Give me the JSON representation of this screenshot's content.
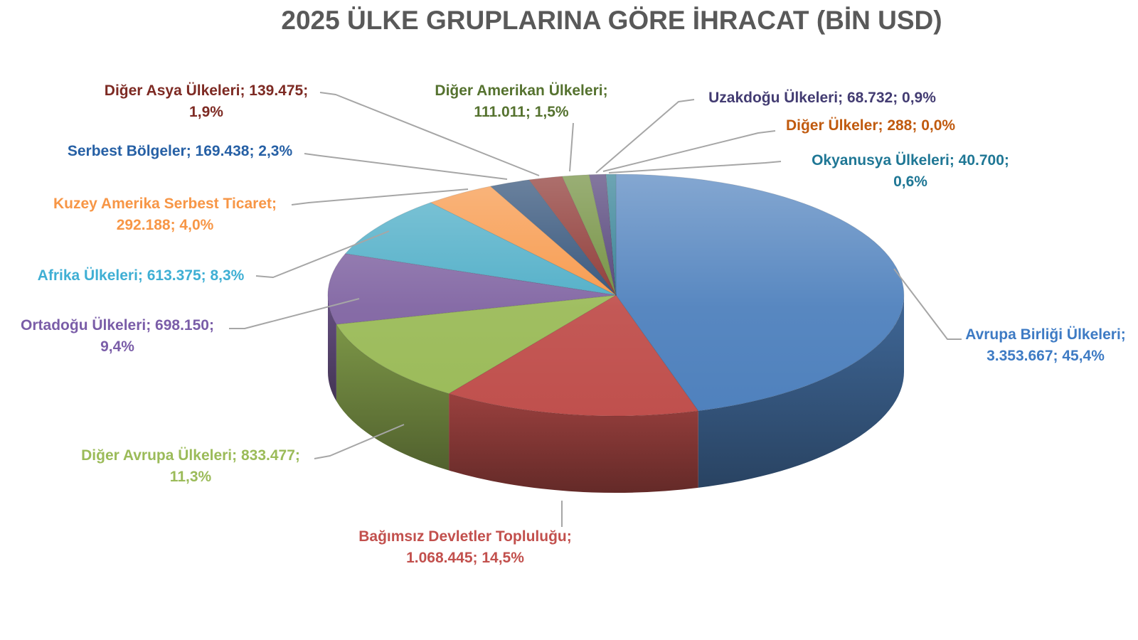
{
  "chart_data": {
    "type": "pie",
    "title": "2025 ÜLKE GRUPLARINA GÖRE İHRACAT (BİN USD)",
    "title_color": "#595959",
    "unit": "BİN USD",
    "total": 7388946,
    "legend_position": "none",
    "label_format": "name; value; percent",
    "leader_line_color": "#A6A6A6",
    "background_color": "#FFFFFF",
    "slices": [
      {
        "name": "Avrupa Birliği Ülkeleri",
        "value": 3353667,
        "value_label": "3.353.667",
        "pct_label": "45,4%",
        "color": "#4F81BD",
        "label_color": "#3E7BC4"
      },
      {
        "name": "Bağımsız Devletler Topluluğu",
        "value": 1068445,
        "value_label": "1.068.445",
        "pct_label": "14,5%",
        "color": "#C0504D",
        "label_color": "#C2504D"
      },
      {
        "name": "Diğer Avrupa Ülkeleri",
        "value": 833477,
        "value_label": "833.477",
        "pct_label": "11,3%",
        "color": "#9BBB59",
        "label_color": "#9BBB59"
      },
      {
        "name": "Ortadoğu Ülkeleri",
        "value": 698150,
        "value_label": "698.150",
        "pct_label": "9,4%",
        "color": "#8064A2",
        "label_color": "#7A5DA8"
      },
      {
        "name": "Afrika Ülkeleri",
        "value": 613375,
        "value_label": "613.375",
        "pct_label": "8,3%",
        "color": "#4BACC6",
        "label_color": "#3FAFD4"
      },
      {
        "name": "Kuzey Amerika Serbest Ticaret",
        "value": 292188,
        "value_label": "292.188",
        "pct_label": "4,0%",
        "color": "#F79646",
        "label_color": "#F79646"
      },
      {
        "name": "Serbest Bölgeler",
        "value": 169438,
        "value_label": "169.438",
        "pct_label": "2,3%",
        "color": "#2C4D75",
        "label_color": "#2660A5"
      },
      {
        "name": "Diğer Asya Ülkeleri",
        "value": 139475,
        "value_label": "139.475",
        "pct_label": "1,9%",
        "color": "#8A322E",
        "label_color": "#7D2A23"
      },
      {
        "name": "Diğer Amerikan Ülkeleri",
        "value": 111011,
        "value_label": "111.011",
        "pct_label": "1,5%",
        "color": "#6E8C3A",
        "label_color": "#55722F"
      },
      {
        "name": "Uzakdoğu Ülkeleri",
        "value": 68732,
        "value_label": "68.732",
        "pct_label": "0,9%",
        "color": "#4E3D75",
        "label_color": "#433C72"
      },
      {
        "name": "Diğer Ülkeler",
        "value": 288,
        "value_label": "288",
        "pct_label": "0,0%",
        "color": "#C55A11",
        "label_color": "#C05A0E"
      },
      {
        "name": "Okyanusya Ülkeleri",
        "value": 40700,
        "value_label": "40.700",
        "pct_label": "0,6%",
        "color": "#2E7D92",
        "label_color": "#1F7795"
      }
    ]
  }
}
